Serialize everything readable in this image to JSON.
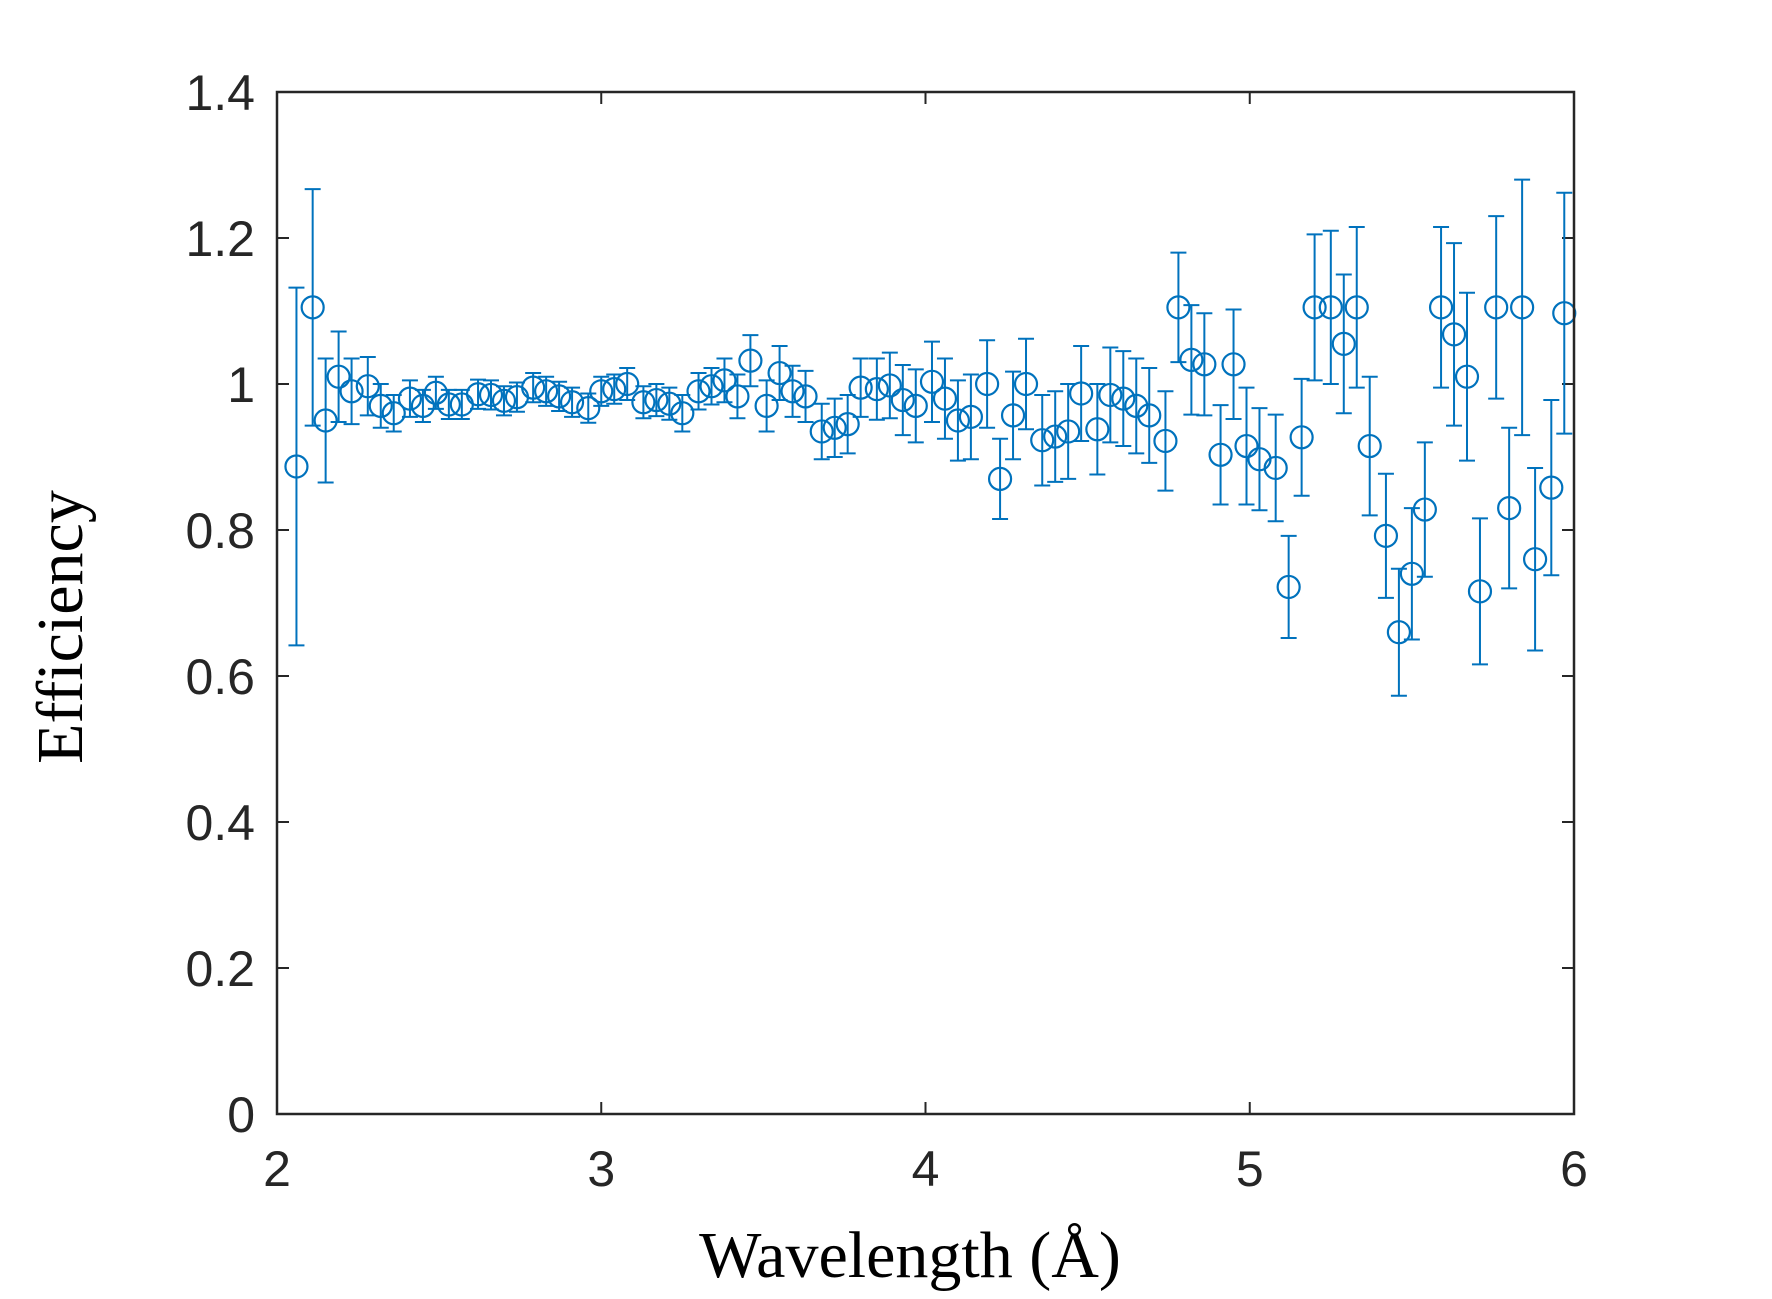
{
  "chart_data": {
    "type": "scatter",
    "title": "",
    "xlabel": "Wavelength (Å)",
    "ylabel": "Efficiency",
    "xlim": [
      2,
      6
    ],
    "ylim": [
      0,
      1.4
    ],
    "xticks": [
      2,
      3,
      4,
      5,
      6
    ],
    "xtick_labels": [
      "2",
      "3",
      "4",
      "5",
      "6"
    ],
    "yticks": [
      0,
      0.2,
      0.4,
      0.6,
      0.8,
      1.0,
      1.2,
      1.4
    ],
    "ytick_labels": [
      "0",
      "0.2",
      "0.4",
      "0.6",
      "0.8",
      "1",
      "1.2",
      "1.4"
    ],
    "grid": false,
    "marker": "circle-open",
    "color": "#0072BD",
    "series": [
      {
        "name": "Efficiency",
        "x": [
          2.06,
          2.11,
          2.15,
          2.19,
          2.23,
          2.28,
          2.32,
          2.36,
          2.41,
          2.45,
          2.49,
          2.53,
          2.57,
          2.62,
          2.66,
          2.7,
          2.74,
          2.79,
          2.83,
          2.87,
          2.91,
          2.96,
          3.0,
          3.04,
          3.08,
          3.13,
          3.17,
          3.21,
          3.25,
          3.3,
          3.34,
          3.38,
          3.42,
          3.46,
          3.51,
          3.55,
          3.59,
          3.63,
          3.68,
          3.72,
          3.76,
          3.8,
          3.85,
          3.89,
          3.93,
          3.97,
          4.02,
          4.06,
          4.1,
          4.14,
          4.19,
          4.23,
          4.27,
          4.31,
          4.36,
          4.4,
          4.44,
          4.48,
          4.53,
          4.57,
          4.61,
          4.65,
          4.69,
          4.74,
          4.78,
          4.82,
          4.86,
          4.91,
          4.95,
          4.99,
          5.03,
          5.08,
          5.12,
          5.16,
          5.2,
          5.25,
          5.29,
          5.33,
          5.37,
          5.42,
          5.46,
          5.5,
          5.54,
          5.59,
          5.63,
          5.67,
          5.71,
          5.76,
          5.8,
          5.84,
          5.88,
          5.93,
          5.97
        ],
        "y": [
          0.887,
          1.105,
          0.95,
          1.01,
          0.99,
          0.997,
          0.97,
          0.96,
          0.98,
          0.97,
          0.988,
          0.972,
          0.972,
          0.986,
          0.985,
          0.977,
          0.982,
          0.995,
          0.99,
          0.983,
          0.975,
          0.967,
          0.99,
          0.993,
          1.0,
          0.975,
          0.978,
          0.973,
          0.96,
          0.99,
          0.997,
          1.005,
          0.983,
          1.032,
          0.97,
          1.015,
          0.99,
          0.983,
          0.935,
          0.94,
          0.945,
          0.995,
          0.993,
          0.998,
          0.978,
          0.97,
          1.003,
          0.98,
          0.95,
          0.955,
          1.0,
          0.87,
          0.957,
          1.0,
          0.923,
          0.928,
          0.935,
          0.987,
          0.938,
          0.985,
          0.98,
          0.97,
          0.957,
          0.922,
          1.105,
          1.033,
          1.027,
          0.903,
          1.027,
          0.915,
          0.897,
          0.885,
          0.722,
          0.927,
          1.105,
          1.105,
          1.055,
          1.105,
          0.915,
          0.792,
          0.66,
          0.74,
          0.828,
          1.105,
          1.068,
          1.01,
          0.716,
          1.105,
          0.83,
          1.105,
          0.76,
          0.858,
          1.097
        ],
        "err_low": [
          0.245,
          0.162,
          0.085,
          0.062,
          0.045,
          0.04,
          0.03,
          0.025,
          0.025,
          0.022,
          0.022,
          0.02,
          0.02,
          0.02,
          0.02,
          0.02,
          0.02,
          0.02,
          0.02,
          0.02,
          0.02,
          0.02,
          0.02,
          0.02,
          0.022,
          0.022,
          0.022,
          0.022,
          0.025,
          0.025,
          0.025,
          0.03,
          0.03,
          0.035,
          0.035,
          0.037,
          0.035,
          0.035,
          0.038,
          0.04,
          0.04,
          0.04,
          0.042,
          0.045,
          0.048,
          0.05,
          0.055,
          0.055,
          0.055,
          0.058,
          0.06,
          0.055,
          0.06,
          0.062,
          0.062,
          0.062,
          0.065,
          0.065,
          0.062,
          0.065,
          0.065,
          0.065,
          0.065,
          0.068,
          0.075,
          0.075,
          0.07,
          0.068,
          0.075,
          0.08,
          0.07,
          0.073,
          0.07,
          0.08,
          0.1,
          0.105,
          0.095,
          0.11,
          0.095,
          0.085,
          0.087,
          0.09,
          0.092,
          0.11,
          0.125,
          0.115,
          0.1,
          0.125,
          0.11,
          0.175,
          0.125,
          0.12,
          0.165
        ],
        "err_high": [
          0.245,
          0.162,
          0.085,
          0.062,
          0.045,
          0.04,
          0.03,
          0.025,
          0.025,
          0.022,
          0.022,
          0.02,
          0.02,
          0.02,
          0.02,
          0.02,
          0.02,
          0.02,
          0.02,
          0.02,
          0.02,
          0.02,
          0.02,
          0.02,
          0.022,
          0.022,
          0.022,
          0.022,
          0.025,
          0.025,
          0.025,
          0.03,
          0.03,
          0.035,
          0.035,
          0.037,
          0.035,
          0.035,
          0.038,
          0.04,
          0.04,
          0.04,
          0.042,
          0.045,
          0.048,
          0.05,
          0.055,
          0.055,
          0.055,
          0.058,
          0.06,
          0.055,
          0.06,
          0.062,
          0.062,
          0.062,
          0.065,
          0.065,
          0.062,
          0.065,
          0.065,
          0.065,
          0.065,
          0.068,
          0.075,
          0.075,
          0.07,
          0.068,
          0.075,
          0.08,
          0.07,
          0.073,
          0.07,
          0.08,
          0.1,
          0.105,
          0.095,
          0.11,
          0.095,
          0.085,
          0.087,
          0.09,
          0.092,
          0.11,
          0.125,
          0.115,
          0.1,
          0.125,
          0.11,
          0.175,
          0.125,
          0.12,
          0.165
        ]
      }
    ]
  }
}
